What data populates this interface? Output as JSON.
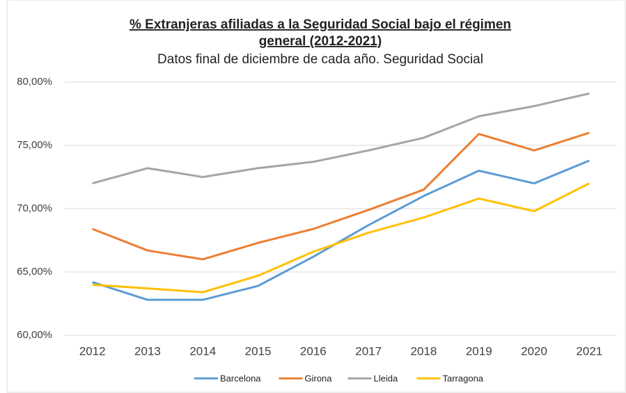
{
  "chart_data": {
    "type": "line",
    "title": [
      "% Extranjeras afiliadas a la Seguridad Social bajo el régimen",
      "general (2012-2021)"
    ],
    "subtitle": "Datos final de diciembre de cada año. Seguridad Social",
    "categories": [
      "2012",
      "2013",
      "2014",
      "2015",
      "2016",
      "2017",
      "2018",
      "2019",
      "2020",
      "2021"
    ],
    "series": [
      {
        "name": "Barcelona",
        "color": "#5b9bd5",
        "values": [
          64.2,
          62.8,
          62.8,
          63.9,
          66.2,
          68.7,
          71.0,
          73.0,
          72.0,
          73.8
        ]
      },
      {
        "name": "Girona",
        "color": "#ed7d31",
        "values": [
          68.4,
          66.7,
          66.0,
          67.3,
          68.4,
          69.9,
          71.5,
          75.9,
          74.6,
          76.0
        ]
      },
      {
        "name": "Lleida",
        "color": "#a5a5a5",
        "values": [
          72.0,
          73.2,
          72.5,
          73.2,
          73.7,
          74.6,
          75.6,
          77.3,
          78.1,
          79.1
        ]
      },
      {
        "name": "Tarragona",
        "color": "#ffc000",
        "values": [
          64.0,
          63.7,
          63.4,
          64.7,
          66.6,
          68.1,
          69.3,
          70.8,
          69.8,
          72.0
        ]
      }
    ],
    "ylim": [
      60,
      80
    ],
    "yticks": [
      {
        "value": 60,
        "label": "60,00%"
      },
      {
        "value": 65,
        "label": "65,00%"
      },
      {
        "value": 70,
        "label": "70,00%"
      },
      {
        "value": 75,
        "label": "75,00%"
      },
      {
        "value": 80,
        "label": "80,00%"
      }
    ],
    "grid": true,
    "legend": "bottom"
  }
}
